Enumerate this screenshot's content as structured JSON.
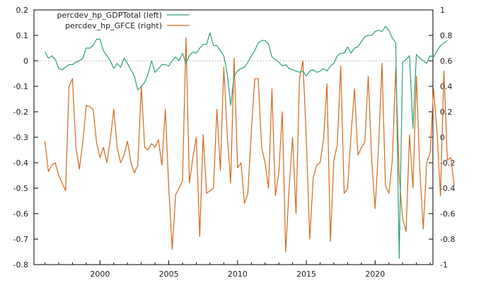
{
  "chart_data": {
    "type": "line",
    "colors": {
      "gdp": "#2f9e77",
      "gfce": "#d2691e",
      "zero_line": "#9a9a9a",
      "axis": "#000000"
    },
    "legend": {
      "placement": "top-left",
      "entries": [
        "percdev_hp_GDPTotal (left)",
        "percdev_hp_GFCE (right)"
      ]
    },
    "grid": false,
    "x_range": [
      1995.2,
      2024.2
    ],
    "x_ticks": [
      "2000",
      "2005",
      "2010",
      "2015",
      "2020"
    ],
    "left_axis": {
      "ylim": [
        -0.8,
        0.2
      ],
      "ticks": [
        "0.2",
        "0.1",
        "0",
        "-0.1",
        "-0.2",
        "-0.3",
        "-0.4",
        "-0.5",
        "-0.6",
        "-0.7",
        "-0.8"
      ]
    },
    "right_axis": {
      "ylim": [
        -1,
        1
      ],
      "ticks": [
        "1",
        "0.8",
        "0.6",
        "0.4",
        "0.2",
        "0",
        "-0.2",
        "-0.4",
        "-0.6",
        "-0.8",
        "-1"
      ]
    },
    "series": [
      {
        "name": "percdev_hp_GDPTotal (left)",
        "axis": "left",
        "x_start": 1996.0,
        "x_step": 0.25,
        "values": [
          0.035,
          0.01,
          0.02,
          0.005,
          -0.03,
          -0.035,
          -0.025,
          -0.015,
          -0.015,
          -0.005,
          0.0,
          0.01,
          0.05,
          0.05,
          0.06,
          0.085,
          0.085,
          0.04,
          0.02,
          0.0,
          -0.03,
          -0.01,
          -0.025,
          0.01,
          -0.01,
          -0.035,
          -0.06,
          -0.115,
          -0.1,
          -0.085,
          -0.05,
          0.0,
          -0.045,
          -0.03,
          -0.015,
          -0.015,
          -0.02,
          0.0,
          0.015,
          0.0,
          0.03,
          -0.01,
          0.02,
          0.035,
          0.03,
          0.05,
          0.065,
          0.065,
          0.11,
          0.06,
          0.06,
          0.04,
          0.02,
          -0.05,
          -0.175,
          -0.06,
          -0.04,
          -0.03,
          -0.025,
          -0.005,
          0.02,
          0.04,
          0.07,
          0.08,
          0.08,
          0.065,
          0.015,
          0.005,
          -0.005,
          -0.02,
          -0.015,
          -0.03,
          -0.035,
          -0.04,
          -0.045,
          -0.04,
          -0.06,
          -0.04,
          -0.035,
          -0.045,
          -0.04,
          -0.03,
          -0.04,
          -0.02,
          -0.01,
          0.02,
          0.03,
          0.03,
          0.055,
          0.03,
          0.05,
          0.055,
          0.075,
          0.095,
          0.1,
          0.1,
          0.115,
          0.12,
          0.115,
          0.135,
          0.12,
          0.09,
          0.07,
          -0.775,
          -0.005,
          0.005,
          0.02,
          -0.265,
          0.025,
          0.01,
          0.0,
          -0.01,
          0.02,
          0.015,
          0.04,
          0.06,
          0.07,
          0.08
        ]
      },
      {
        "name": "percdev_hp_GFCE (right)",
        "axis": "right",
        "x_start": 1996.0,
        "x_step": 0.25,
        "values": [
          -0.03,
          -0.27,
          -0.22,
          -0.2,
          -0.3,
          -0.36,
          -0.42,
          0.4,
          0.46,
          -0.08,
          -0.25,
          -0.04,
          0.25,
          0.24,
          0.22,
          -0.04,
          -0.16,
          -0.08,
          -0.2,
          -0.02,
          0.22,
          -0.08,
          -0.2,
          -0.14,
          -0.03,
          -0.2,
          -0.28,
          -0.22,
          0.4,
          -0.08,
          -0.1,
          -0.05,
          -0.08,
          -0.02,
          -0.22,
          0.22,
          -0.4,
          -0.88,
          -0.45,
          -0.4,
          -0.34,
          0.78,
          -0.36,
          -0.16,
          0.0,
          -0.78,
          0.02,
          -0.44,
          -0.42,
          -0.4,
          0.22,
          -0.26,
          0.55,
          0.02,
          -0.36,
          0.62,
          -0.24,
          -0.2,
          -0.52,
          -0.44,
          0.04,
          0.46,
          0.46,
          -0.08,
          -0.2,
          -0.4,
          0.38,
          -0.46,
          -0.28,
          0.2,
          -0.9,
          -0.4,
          0.0,
          -0.6,
          0.46,
          0.6,
          -0.02,
          -0.8,
          -0.32,
          -0.22,
          -0.2,
          -0.02,
          0.42,
          -0.82,
          -0.18,
          -0.06,
          0.56,
          -0.44,
          -0.4,
          0.02,
          0.38,
          -0.14,
          -0.08,
          -0.04,
          0.48,
          -0.18,
          -0.56,
          -0.08,
          0.58,
          -0.38,
          -0.44,
          -0.18,
          0.54,
          -0.3,
          -0.64,
          -0.74,
          0.02,
          -0.4,
          0.48,
          -0.26,
          -0.72,
          -0.2,
          -0.12,
          0.38,
          0.04,
          -0.46,
          0.52,
          -0.18,
          -0.16,
          -0.38
        ]
      }
    ]
  }
}
